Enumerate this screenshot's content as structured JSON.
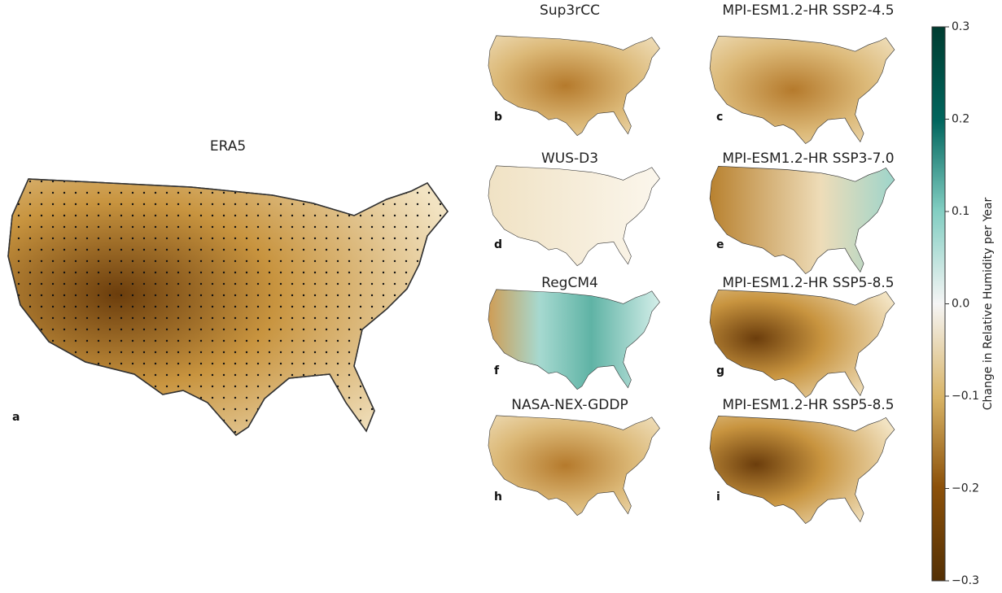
{
  "panels": [
    {
      "title": "ERA5",
      "letter": "a"
    },
    {
      "title": "Sup3rCC",
      "letter": "b"
    },
    {
      "title": "MPI-ESM1.2-HR SSP2-4.5",
      "letter": "c"
    },
    {
      "title": "WUS-D3",
      "letter": "d"
    },
    {
      "title": "MPI-ESM1.2-HR SSP3-7.0",
      "letter": "e"
    },
    {
      "title": "RegCM4",
      "letter": "f"
    },
    {
      "title": "MPI-ESM1.2-HR SSP5-8.5",
      "letter": "g"
    },
    {
      "title": "NASA-NEX-GDDP",
      "letter": "h"
    },
    {
      "title": "MPI-ESM1.2-HR SSP5-8.5",
      "letter": "i"
    }
  ],
  "colorbar": {
    "label": "Change in Relative Humidity per Year",
    "lim": [
      -0.3,
      0.3
    ],
    "ticks": [
      0.3,
      0.2,
      0.1,
      {
        "value": 0,
        "label": "0.0"
      },
      {
        "value": -0.1,
        "label": "−0.1"
      },
      {
        "value": -0.2,
        "label": "−0.2"
      },
      {
        "value": -0.3,
        "label": "−0.3"
      }
    ]
  }
}
